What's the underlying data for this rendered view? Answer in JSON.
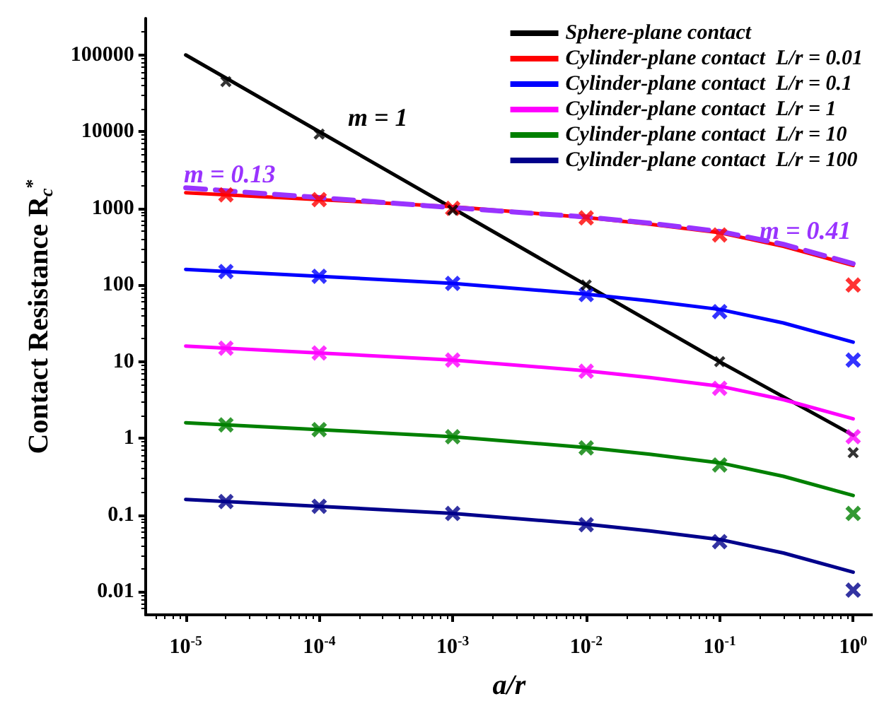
{
  "chart_data": {
    "type": "line",
    "xlabel": "a/r",
    "ylabel": "Contact Resistance R$_{c}$$^{*}$",
    "log": "xy",
    "grid": false,
    "legend": "top right",
    "xlim": [
      5e-06,
      1.4
    ],
    "ylim": [
      0.005,
      300000
    ],
    "xticks": [
      {
        "value": 1e-05,
        "label": "10$^{-5}$"
      },
      {
        "value": 0.0001,
        "label": "10$^{-4}$"
      },
      {
        "value": 0.001,
        "label": "10$^{-3}$"
      },
      {
        "value": 0.01,
        "label": "10$^{-2}$"
      },
      {
        "value": 0.1,
        "label": "10$^{-1}$"
      },
      {
        "value": 1,
        "label": "10$^{0}$"
      }
    ],
    "yticks": [
      0.01,
      0.1,
      1,
      10,
      100,
      1000,
      10000,
      100000
    ],
    "series": [
      {
        "name": "Sphere-plane contact",
        "color": "#000000",
        "marker": "none",
        "x": [
          1e-05,
          0.0001,
          0.001,
          0.01,
          0.1,
          1
        ],
        "values": [
          100000,
          10000,
          1000,
          100,
          10,
          1.1
        ]
      },
      {
        "name": "Cylinder-plane contact  L/r = 0.01",
        "color": "#ff0000",
        "marker": "none",
        "x": [
          1e-05,
          0.0001,
          0.001,
          0.01,
          0.03,
          0.1,
          0.3,
          1
        ],
        "values": [
          1600,
          1300,
          1050,
          760,
          620,
          480,
          320,
          180
        ]
      },
      {
        "name": "Cylinder-plane contact  L/r = 0.1",
        "color": "#0000ff",
        "marker": "none",
        "x": [
          1e-05,
          0.0001,
          0.001,
          0.01,
          0.03,
          0.1,
          0.3,
          1
        ],
        "values": [
          160,
          130,
          105,
          76,
          62,
          48,
          32,
          18
        ]
      },
      {
        "name": "Cylinder-plane contact  L/r = 1",
        "color": "#ff00ff",
        "marker": "none",
        "x": [
          1e-05,
          0.0001,
          0.001,
          0.01,
          0.03,
          0.1,
          0.3,
          1
        ],
        "values": [
          16,
          13,
          10.5,
          7.6,
          6.2,
          4.8,
          3.2,
          1.8
        ]
      },
      {
        "name": "Cylinder-plane contact  L/r = 10",
        "color": "#008000",
        "marker": "none",
        "x": [
          1e-05,
          0.0001,
          0.001,
          0.01,
          0.03,
          0.1,
          0.3,
          1
        ],
        "values": [
          1.6,
          1.3,
          1.05,
          0.76,
          0.62,
          0.48,
          0.32,
          0.18
        ]
      },
      {
        "name": "Cylinder-plane contact  L/r = 100",
        "color": "#00008b",
        "marker": "none",
        "x": [
          1e-05,
          0.0001,
          0.001,
          0.01,
          0.03,
          0.1,
          0.3,
          1
        ],
        "values": [
          0.16,
          0.13,
          0.105,
          0.076,
          0.062,
          0.048,
          0.032,
          0.018
        ]
      },
      {
        "color": "#9933ff",
        "marker": "none",
        "line_style": "dashed",
        "x": [
          1e-05,
          0.0001,
          0.001,
          0.01,
          0.03,
          0.1,
          0.3,
          1
        ],
        "values": [
          1850,
          1380,
          1020,
          770,
          640,
          500,
          340,
          190
        ]
      },
      {
        "type": "scatter",
        "color": "#000000",
        "marker": "cross",
        "x": [
          2e-05,
          0.0001,
          0.001,
          0.01,
          0.1,
          1
        ],
        "values": [
          45000,
          9300,
          950,
          100,
          10,
          0.65
        ]
      },
      {
        "type": "scatter",
        "color": "#ff0000",
        "marker": "cross",
        "x": [
          2e-05,
          0.0001,
          0.001,
          0.01,
          0.1,
          1
        ],
        "values": [
          1500,
          1300,
          1000,
          750,
          450,
          100
        ]
      },
      {
        "type": "scatter",
        "color": "#0000ff",
        "marker": "cross",
        "x": [
          2e-05,
          0.0001,
          0.001,
          0.01,
          0.1,
          1
        ],
        "values": [
          150,
          130,
          105,
          75,
          45,
          10.5
        ]
      },
      {
        "type": "scatter",
        "color": "#ff00ff",
        "marker": "cross",
        "x": [
          2e-05,
          0.0001,
          0.001,
          0.01,
          0.1,
          1
        ],
        "values": [
          15,
          13,
          10.5,
          7.5,
          4.5,
          1.05
        ]
      },
      {
        "type": "scatter",
        "color": "#008000",
        "marker": "cross",
        "x": [
          2e-05,
          0.0001,
          0.001,
          0.01,
          0.1,
          1
        ],
        "values": [
          1.5,
          1.3,
          1.05,
          0.75,
          0.45,
          0.105
        ]
      },
      {
        "type": "scatter",
        "color": "#00008b",
        "marker": "cross",
        "x": [
          2e-05,
          0.0001,
          0.001,
          0.01,
          0.1,
          1
        ],
        "values": [
          0.15,
          0.13,
          0.105,
          0.075,
          0.045,
          0.0105
        ]
      }
    ],
    "annotations": [
      "m = 1",
      "m = 0.13",
      "m = 0.41"
    ]
  }
}
